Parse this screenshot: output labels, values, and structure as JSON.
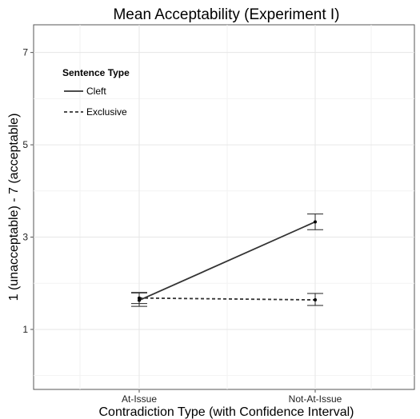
{
  "chart_data": {
    "type": "line",
    "title": "Mean Acceptability (Experiment I)",
    "xlabel": "Contradiction Type (with Confidence Interval)",
    "ylabel": "1 (unacceptable) - 7 (acceptable)",
    "categories": [
      "At-Issue",
      "Not-At-Issue"
    ],
    "ylim": [
      -0.3,
      7.6
    ],
    "yticks": [
      1,
      3,
      5,
      7
    ],
    "grid": true,
    "legend": {
      "title": "Sentence Type",
      "position": "top-left"
    },
    "series": [
      {
        "name": "Cleft",
        "line_style": "solid",
        "values": [
          1.63,
          3.33
        ],
        "ci_low": [
          1.5,
          3.16
        ],
        "ci_high": [
          1.79,
          3.5
        ]
      },
      {
        "name": "Exclusive",
        "line_style": "dashed",
        "values": [
          1.68,
          1.64
        ],
        "ci_low": [
          1.56,
          1.52
        ],
        "ci_high": [
          1.8,
          1.78
        ]
      }
    ]
  }
}
